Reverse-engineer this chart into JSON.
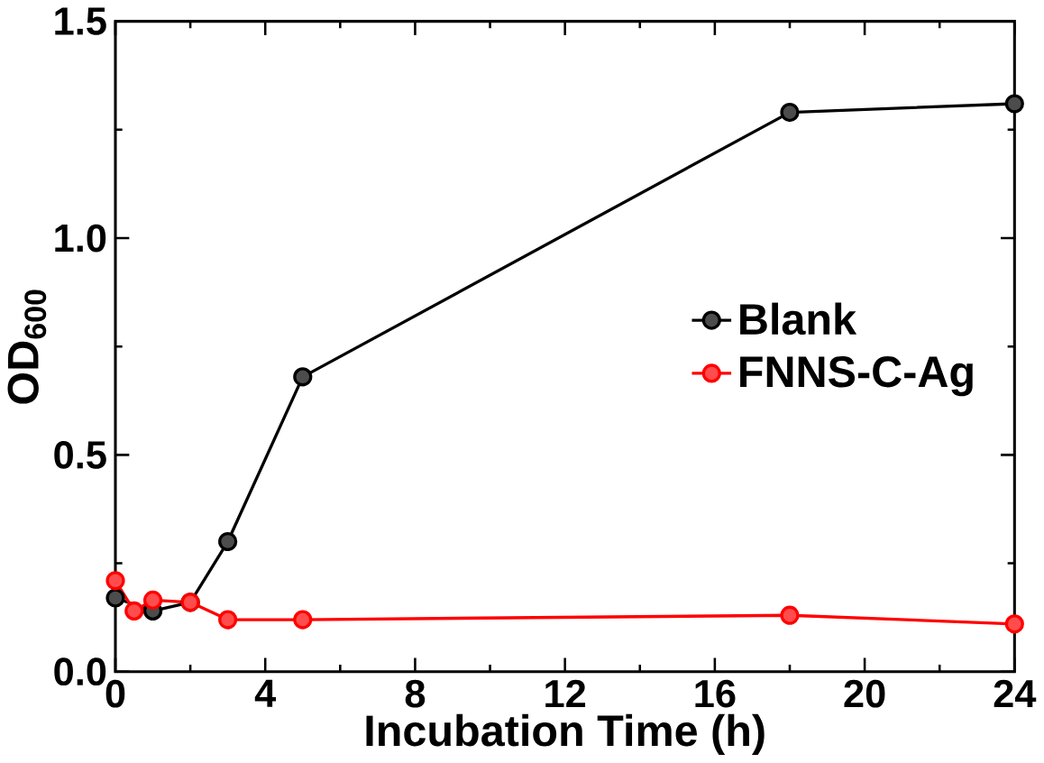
{
  "chart_data": {
    "type": "line",
    "xlabel": "Incubation Time (h)",
    "ylabel": "OD$_{600}$",
    "xlim": [
      0,
      24
    ],
    "xticks": [
      0,
      4,
      8,
      12,
      16,
      20,
      24
    ],
    "ylim": [
      0,
      1.5
    ],
    "yticks": [
      {
        "value": 0,
        "label": "0.0"
      },
      0.5,
      {
        "value": 1,
        "label": "1.0"
      },
      1.5
    ],
    "marker": "circle",
    "legend": "right",
    "grid": false,
    "series": [
      {
        "name": "Blank",
        "color": "#000000",
        "x": [
          0,
          1,
          2,
          3,
          5,
          18,
          24
        ],
        "values": [
          0.17,
          0.14,
          0.16,
          0.3,
          0.68,
          1.29,
          1.31
        ]
      },
      {
        "name": "FNNS-C-Ag",
        "color": "#ff0000",
        "x": [
          0,
          0.5,
          1,
          2,
          3,
          5,
          18,
          24
        ],
        "values": [
          0.21,
          0.14,
          0.165,
          0.16,
          0.12,
          0.12,
          0.13,
          0.11
        ]
      }
    ]
  }
}
